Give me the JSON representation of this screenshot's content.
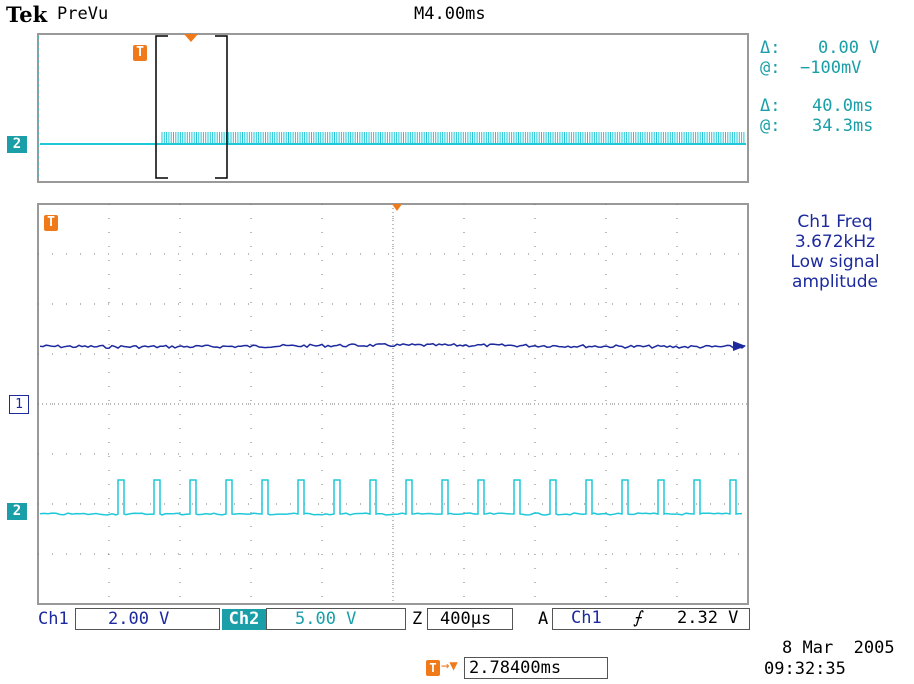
{
  "header": {
    "brand": "Tek",
    "mode": "PreVu",
    "timebase": "M4.00ms"
  },
  "cursor_readout": {
    "v_delta_label": "Δ:",
    "v_delta_value": "0.00 V",
    "v_at_label": "@:",
    "v_at_value": "−100mV",
    "t_delta_label": "Δ:",
    "t_delta_value": "40.0ms",
    "t_at_label": "@:",
    "t_at_value": "34.3ms"
  },
  "measurement": {
    "line1": "Ch1 Freq",
    "line2": "3.672kHz",
    "line3": "Low signal",
    "line4": "amplitude"
  },
  "markers": {
    "trigger": "T",
    "ch1": "1",
    "ch2": "2",
    "ch2_preview": "2"
  },
  "status_bar": {
    "ch1_label": "Ch1",
    "ch1_scale": "2.00 V",
    "ch2_label": "Ch2",
    "ch2_scale": "5.00 V",
    "zoom_label": "Z",
    "zoom_scale": "400µs",
    "acq_label": "A",
    "trig_source": "Ch1",
    "trig_slope": "⨍",
    "trig_level": "2.32 V"
  },
  "trigger_position": "2.78400ms",
  "date": "8 Mar  2005",
  "time": "09:32:35",
  "colors": {
    "ch1": "#1c2a9e",
    "ch2": "#1ec8d8",
    "trigger": "#f07a1a",
    "text_cyan": "#1a9fa8"
  }
}
